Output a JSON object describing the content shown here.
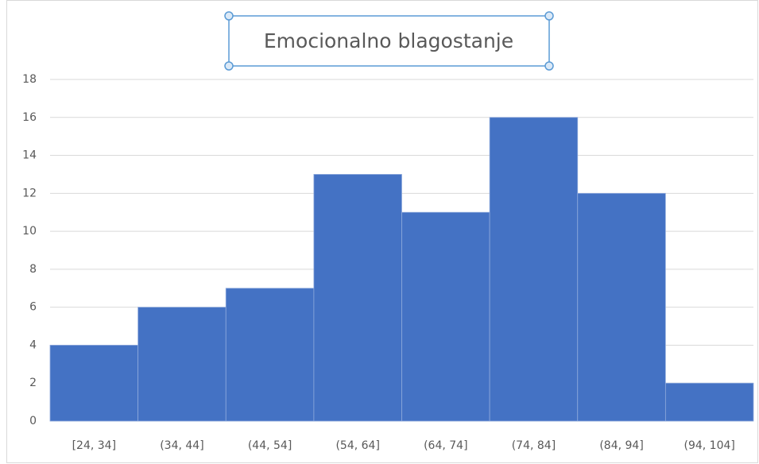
{
  "chart_data": {
    "type": "bar",
    "title": "Emocionalno blagostanje",
    "categories": [
      "[24, 34]",
      "(34, 44]",
      "(44, 54]",
      "(54, 64]",
      "(64, 74]",
      "(74, 84]",
      "(84, 94]",
      "(94, 104]"
    ],
    "values": [
      4,
      6,
      7,
      13,
      11,
      16,
      12,
      2
    ],
    "color": "#4472c4",
    "ylim": [
      0,
      18
    ],
    "yticks": [
      0,
      2,
      4,
      6,
      8,
      10,
      12,
      14,
      16,
      18
    ],
    "grid": true
  }
}
